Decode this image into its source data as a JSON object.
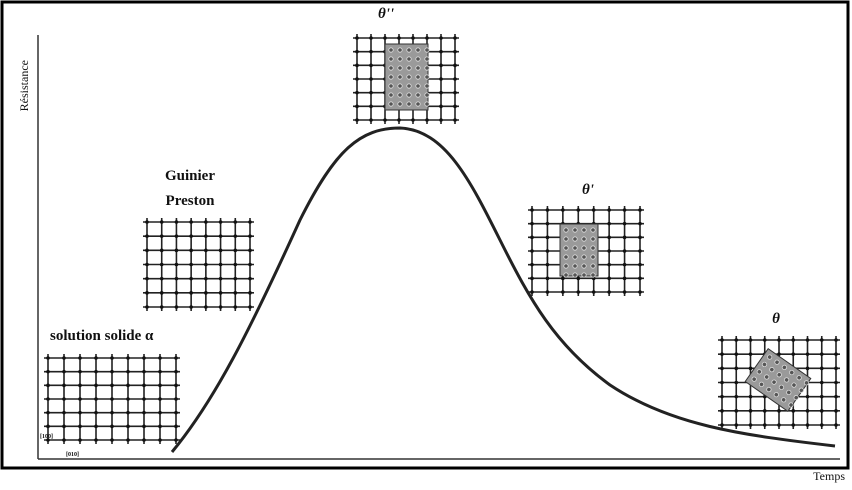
{
  "axes": {
    "y_label": "Résistance",
    "x_label": "Temps"
  },
  "stages": [
    {
      "label": [
        "solution solide α"
      ],
      "directions": [
        "[100]",
        "[010]"
      ]
    },
    {
      "label": [
        "Guinier",
        "Preston"
      ]
    },
    {
      "label": [
        "θ''"
      ]
    },
    {
      "label": [
        "θ'"
      ]
    },
    {
      "label": [
        "θ"
      ]
    }
  ]
}
